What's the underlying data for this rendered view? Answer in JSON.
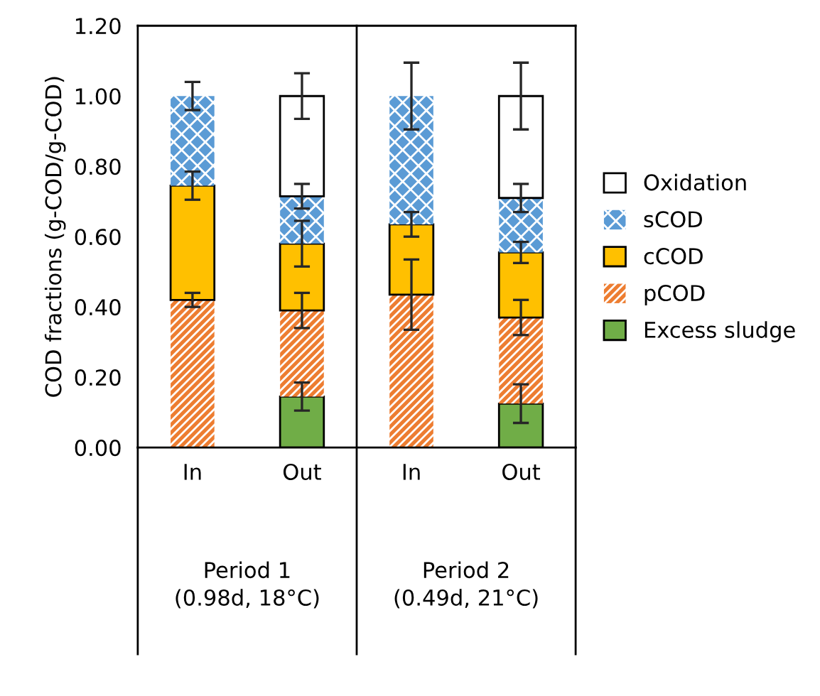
{
  "chart_data": {
    "type": "bar",
    "stacked": true,
    "ylabel": "COD fractions (g-COD/g-COD)",
    "categories": [
      "In",
      "Out",
      "In",
      "Out"
    ],
    "annotations": [
      "Period 1\n(0.98d, 18°C)",
      "Period 2\n(0.49d, 21°C)"
    ],
    "series": [
      {
        "name": "Excess sludge",
        "color": "#70ad47",
        "values": [
          null,
          0.145,
          null,
          0.125
        ],
        "errors": [
          null,
          0.04,
          null,
          0.055
        ]
      },
      {
        "name": "pCOD",
        "color": "#ed7d31",
        "values": [
          0.42,
          0.245,
          0.435,
          0.245
        ],
        "errors": [
          0.02,
          0.05,
          0.1,
          0.05
        ]
      },
      {
        "name": "cCOD",
        "color": "#ffc000",
        "values": [
          0.325,
          0.19,
          0.2,
          0.185
        ],
        "errors": [
          0.04,
          0.065,
          0.035,
          0.03
        ]
      },
      {
        "name": "sCOD",
        "color": "#5b9bd5",
        "values": [
          0.255,
          0.135,
          0.365,
          0.155
        ],
        "errors": [
          0.04,
          0.035,
          0.095,
          0.04
        ]
      },
      {
        "name": "Oxidation",
        "color": "#ffffff",
        "values": [
          null,
          0.285,
          null,
          0.29
        ],
        "errors": [
          null,
          0.065,
          null,
          0.095
        ]
      }
    ],
    "ylim": [
      0,
      1.2
    ],
    "yticks": [
      {
        "value": 0,
        "label": "0.00"
      },
      {
        "value": 0.2,
        "label": "0.20"
      },
      {
        "value": 0.4,
        "label": "0.40"
      },
      {
        "value": 0.6,
        "label": "0.60"
      },
      {
        "value": 0.8,
        "label": "0.80"
      },
      {
        "value": 1.0,
        "label": "1.00"
      },
      {
        "value": 1.2,
        "label": "1.20"
      }
    ],
    "grid": false,
    "legend": "right"
  }
}
